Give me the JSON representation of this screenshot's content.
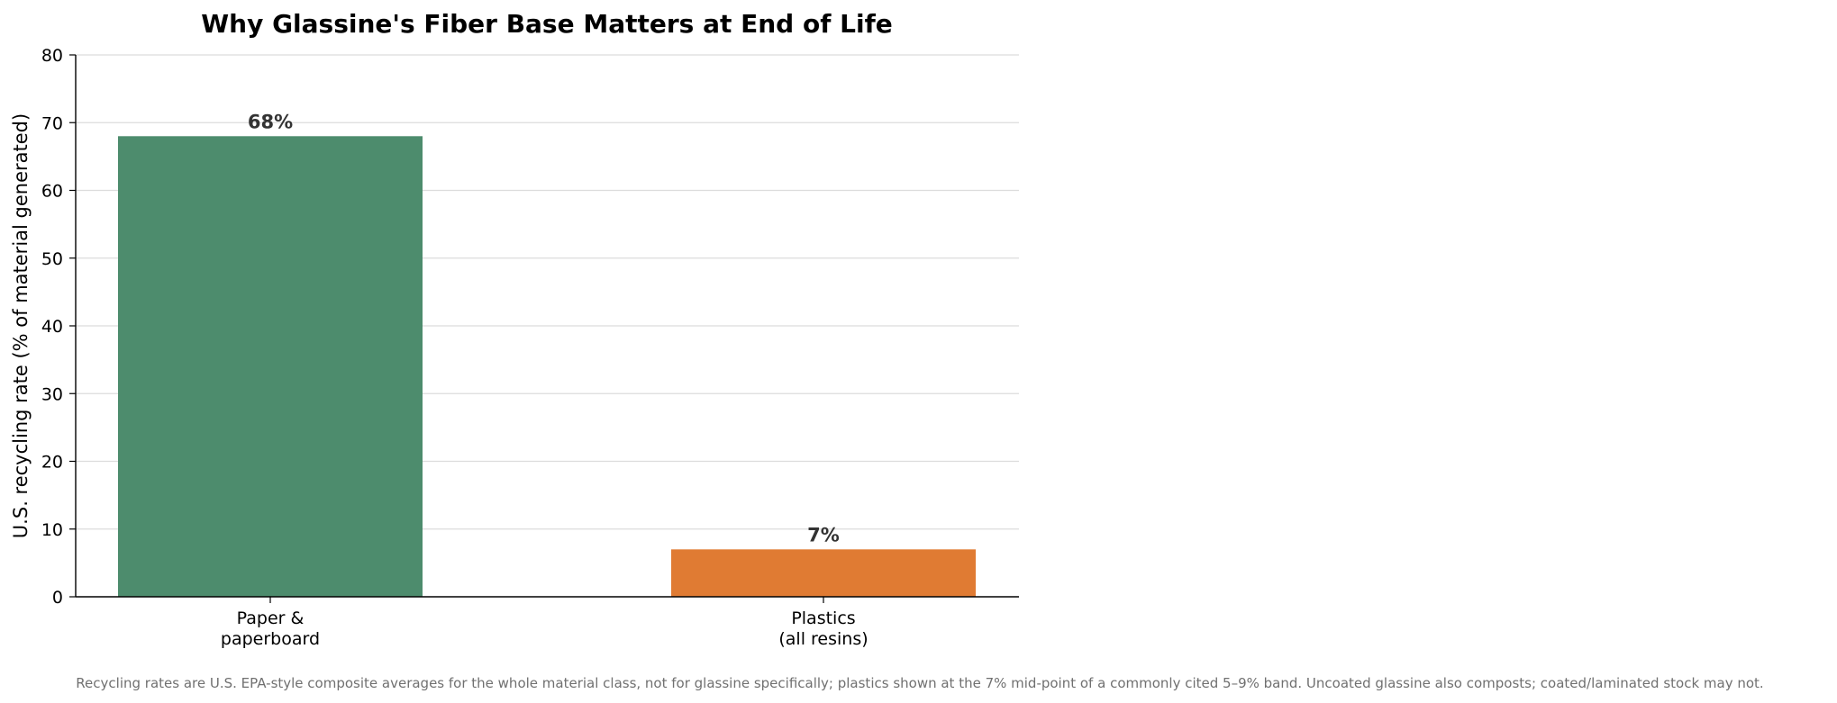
{
  "chart_data": {
    "type": "bar",
    "title": "Why Glassine's Fiber Base Matters at End of Life",
    "xlabel": "",
    "ylabel": "U.S. recycling rate (% of material generated)",
    "categories": [
      [
        "Paper &",
        "paperboard"
      ],
      [
        "Plastics",
        "(all resins)"
      ]
    ],
    "values": [
      68,
      7
    ],
    "data_labels": [
      "68%",
      "7%"
    ],
    "colors": [
      "#4d8c6d",
      "#e07b33"
    ],
    "ylim": [
      0,
      80
    ],
    "yticks": [
      0,
      10,
      20,
      30,
      40,
      50,
      60,
      70,
      80
    ],
    "grid": true,
    "legend": "none"
  },
  "footnote": "Recycling rates are U.S. EPA-style composite averages for the whole material class, not for glassine specifically; plastics shown at the 7% mid-point of a commonly cited 5–9% band. Uncoated glassine also composts; coated/laminated stock may not."
}
